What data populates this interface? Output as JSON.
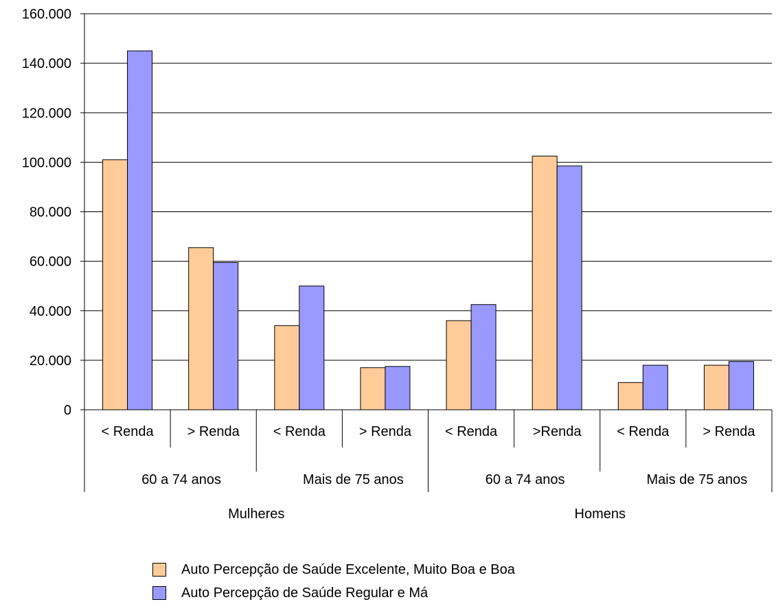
{
  "chart_data": {
    "type": "bar",
    "y_tick_labels": [
      "0",
      "20.000",
      "40.000",
      "60.000",
      "80.000",
      "100.000",
      "120.000",
      "140.000",
      "160.000"
    ],
    "ylim": [
      0,
      160000
    ],
    "categories": [
      "< Renda",
      "> Renda",
      "< Renda",
      "> Renda",
      "< Renda",
      ">Renda",
      "< Renda",
      "> Renda"
    ],
    "age_groups": [
      "60 a 74 anos",
      "Mais de 75 anos",
      "60 a 74 anos",
      "Mais de 75 anos"
    ],
    "sex_groups": [
      "Mulheres",
      "Homens"
    ],
    "series": [
      {
        "name": "Auto Percepção de Saúde Excelente, Muito Boa e Boa",
        "color": "#FFCC99",
        "values": [
          101000,
          65500,
          34000,
          17000,
          36000,
          102500,
          11000,
          18000
        ]
      },
      {
        "name": "Auto Percepção de Saúde Regular e Má",
        "color": "#9999FF",
        "values": [
          145000,
          59500,
          50000,
          17500,
          42500,
          98500,
          18000,
          19500
        ]
      }
    ],
    "grid": true,
    "legend_position": "bottom"
  }
}
